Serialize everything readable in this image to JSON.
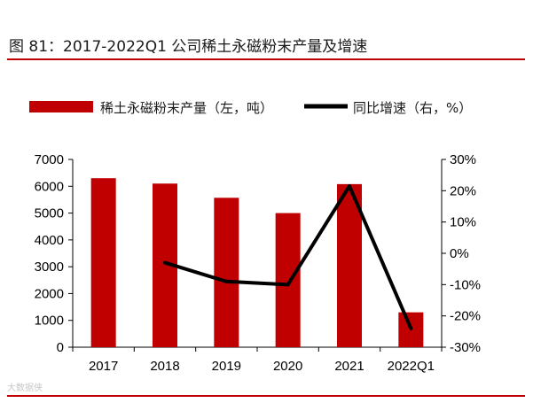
{
  "header": {
    "title": "图 81：2017-2022Q1 公司稀土永磁粉末产量及增速"
  },
  "watermark": "大数据侠",
  "colors": {
    "accent": "#c00000",
    "bar": "#c00000",
    "line": "#000000"
  },
  "chart_data": {
    "type": "bar",
    "title": "图 81：2017-2022Q1 公司稀土永磁粉末产量及增速",
    "categories": [
      "2017",
      "2018",
      "2019",
      "2020",
      "2021",
      "2022Q1"
    ],
    "series": [
      {
        "name": "稀土永磁粉末产量（左，吨）",
        "type": "bar",
        "axis": "left",
        "values": [
          6300,
          6100,
          5570,
          5000,
          6080,
          1300
        ]
      },
      {
        "name": "同比增速（右，%）",
        "type": "line",
        "axis": "right",
        "values": [
          null,
          -3,
          -9,
          -10,
          21.5,
          -24
        ]
      }
    ],
    "ylim_left": [
      0,
      7000
    ],
    "yticks_left": [
      "0",
      "1000",
      "2000",
      "3000",
      "4000",
      "5000",
      "6000",
      "7000"
    ],
    "ylim_right": [
      -30,
      30
    ],
    "yticks_right": [
      "-30%",
      "-20%",
      "-10%",
      "0%",
      "10%",
      "20%",
      "30%"
    ],
    "legend_position": "top",
    "grid": false
  }
}
